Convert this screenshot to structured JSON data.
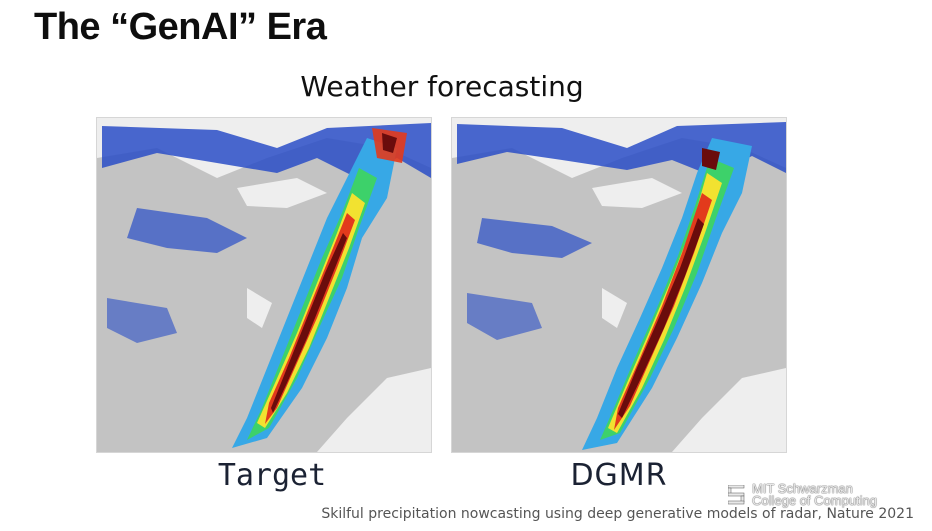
{
  "slide": {
    "title": "The “GenAI” Era",
    "subtitle": "Weather forecasting",
    "citation": "Skilful precipitation nowcasting using deep generative models of radar, Nature 2021"
  },
  "panels": [
    {
      "caption": "Target"
    },
    {
      "caption": "DGMR"
    }
  ],
  "logo": {
    "line1": "MIT Schwarzman",
    "line2": "College of Computing"
  },
  "colors": {
    "land": "#c3c3c3",
    "water": "#eeeeee",
    "precip_light": "#2a4ec7",
    "precip_medium": "#37a8e6",
    "precip_moderate": "#3dd16a",
    "precip_heavy": "#f2e230",
    "precip_very_heavy": "#e23a1c",
    "precip_extreme": "#6a0c0c"
  }
}
